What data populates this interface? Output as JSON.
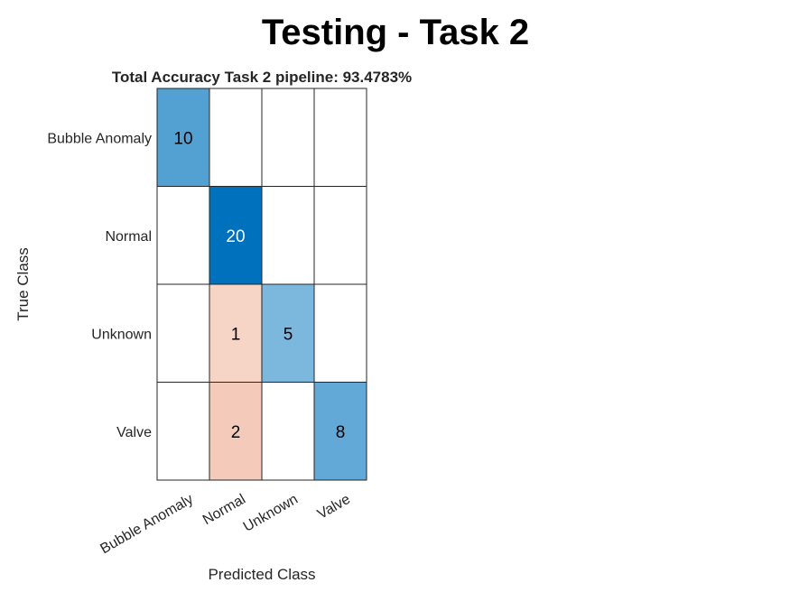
{
  "figure": {
    "title": "Testing - Task 2"
  },
  "chart_data": {
    "type": "heatmap",
    "title": "Total Accuracy Task 2 pipeline: 93.4783%",
    "xlabel": "Predicted Class",
    "ylabel": "True Class",
    "row_labels": [
      "Bubble Anomaly",
      "Normal",
      "Unknown",
      "Valve"
    ],
    "col_labels": [
      "Bubble Anomaly",
      "Normal",
      "Unknown",
      "Valve"
    ],
    "values": [
      [
        10,
        0,
        0,
        0
      ],
      [
        0,
        20,
        0,
        0
      ],
      [
        0,
        1,
        5,
        0
      ],
      [
        0,
        2,
        0,
        8
      ]
    ],
    "colors": {
      "correct_max": "#0072BD",
      "incorrect_max": "#D95319",
      "empty": "#FFFFFF",
      "grid": "#262626",
      "dark_text": "#000000",
      "light_text": "#FFFFFF"
    }
  }
}
